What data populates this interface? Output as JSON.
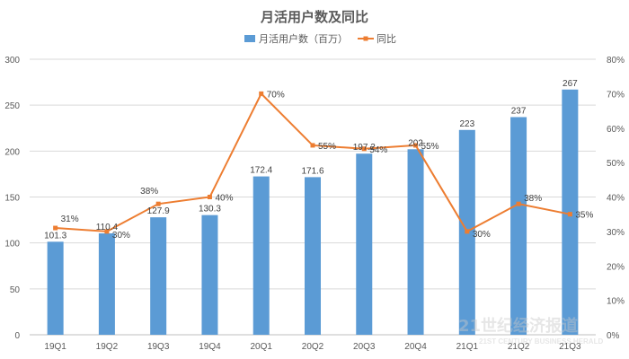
{
  "chart_data": {
    "type": "bar",
    "title": "月活用户数及同比",
    "categories": [
      "19Q1",
      "19Q2",
      "19Q3",
      "19Q4",
      "20Q1",
      "20Q2",
      "20Q3",
      "20Q4",
      "21Q1",
      "21Q2",
      "21Q3"
    ],
    "series": [
      {
        "name": "月活用户数（百万）",
        "type": "bar",
        "axis": "left",
        "color": "#5b9bd5",
        "values": [
          101.3,
          110.4,
          127.9,
          130.3,
          172.4,
          171.6,
          197.2,
          202,
          223,
          237,
          267
        ],
        "labels": [
          "101.3",
          "110.4",
          "127.9",
          "130.3",
          "172.4",
          "171.6",
          "197.2",
          "202",
          "223",
          "237",
          "267"
        ]
      },
      {
        "name": "同比",
        "type": "line",
        "axis": "right",
        "color": "#ed7d31",
        "values": [
          0.31,
          0.3,
          0.38,
          0.4,
          0.7,
          0.55,
          0.54,
          0.55,
          0.3,
          0.38,
          0.35
        ],
        "labels": [
          "31%",
          "30%",
          "38%",
          "40%",
          "70%",
          "55%",
          "54%",
          "55%",
          "30%",
          "38%",
          "35%"
        ]
      }
    ],
    "y_left": {
      "ylim": [
        0,
        300
      ],
      "ticks": [
        "0",
        "50",
        "100",
        "150",
        "200",
        "250",
        "300"
      ]
    },
    "y_right": {
      "ylim": [
        0,
        0.8
      ],
      "ticks": [
        "0%",
        "10%",
        "20%",
        "30%",
        "40%",
        "50%",
        "60%",
        "70%",
        "80%"
      ]
    },
    "grid": true,
    "legend": "top"
  },
  "watermark": {
    "text_cn": "21世纪经济报道",
    "text_en": "21ST CENTURY BUSINESS HERALD"
  }
}
